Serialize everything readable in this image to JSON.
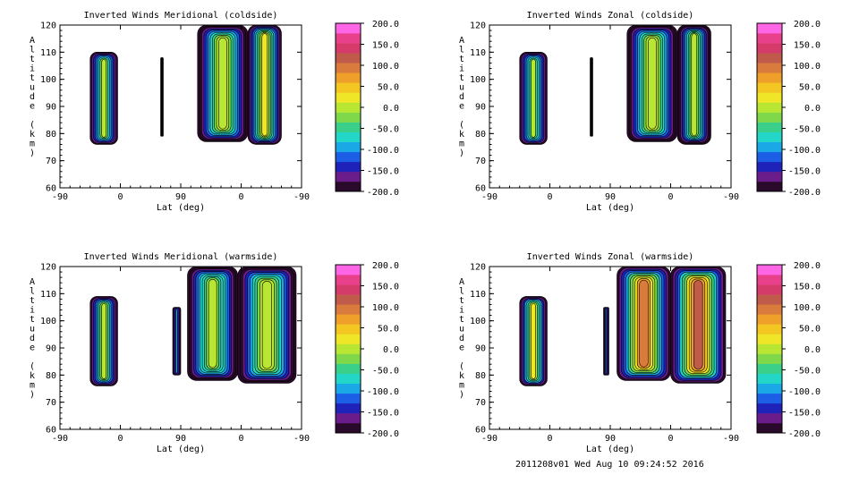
{
  "footer": {
    "stamp": "2011208v01 Wed Aug 10 09:24:52 2016"
  },
  "palette": {
    "colorbar": [
      "#2a0a2a",
      "#6a1d8a",
      "#1e22b8",
      "#1c5fe6",
      "#1aa8e6",
      "#22d6c8",
      "#3ad08a",
      "#7fd84a",
      "#b8e632",
      "#f0e628",
      "#f3c622",
      "#eea02a",
      "#d87b3c",
      "#c05a4a",
      "#d43a6a",
      "#e8408a",
      "#ff66e6"
    ],
    "outline": "#000000"
  },
  "chart_data": [
    {
      "type": "heatmap",
      "title": "Inverted Winds Meridional (coldside)",
      "xlabel": "Lat (deg)",
      "ylabel": "Altitude (km)",
      "x_ticks": [
        "-90",
        "0",
        "90",
        "0",
        "-90"
      ],
      "y_ticks": [
        "60",
        "70",
        "80",
        "90",
        "100",
        "110",
        "120"
      ],
      "ylim": [
        60,
        120
      ],
      "colorbar": {
        "ticks": [
          "200.0",
          "150.0",
          "100.0",
          "50.0",
          "0.0",
          "-50.0",
          "-100.0",
          "-150.0",
          "-200.0"
        ],
        "range": [
          -200,
          200
        ]
      },
      "regions": [
        {
          "x": [
            -45,
            -4
          ],
          "alt": [
            76,
            110
          ],
          "core": -5
        },
        {
          "x": [
            60,
            64
          ],
          "alt": [
            79,
            108
          ],
          "core": -180
        },
        {
          "x": [
            115,
            190
          ],
          "alt": [
            77,
            120
          ],
          "core": 10
        },
        {
          "x": [
            190,
            240
          ],
          "alt": [
            76,
            120
          ],
          "core": 15
        }
      ]
    },
    {
      "type": "heatmap",
      "title": "Inverted Winds Zonal (coldside)",
      "xlabel": "Lat (deg)",
      "ylabel": "Altitude (km)",
      "x_ticks": [
        "-90",
        "0",
        "90",
        "0",
        "-90"
      ],
      "y_ticks": [
        "60",
        "70",
        "80",
        "90",
        "100",
        "110",
        "120"
      ],
      "ylim": [
        60,
        120
      ],
      "colorbar": {
        "ticks": [
          "200.0",
          "150.0",
          "100.0",
          "50.0",
          "0.0",
          "-50.0",
          "-100.0",
          "-150.0",
          "-200.0"
        ],
        "range": [
          -200,
          200
        ]
      },
      "regions": [
        {
          "x": [
            -45,
            -4
          ],
          "alt": [
            76,
            110
          ],
          "core": -10
        },
        {
          "x": [
            60,
            64
          ],
          "alt": [
            79,
            108
          ],
          "core": -180
        },
        {
          "x": [
            115,
            190
          ],
          "alt": [
            77,
            120
          ],
          "core": 10
        },
        {
          "x": [
            190,
            240
          ],
          "alt": [
            76,
            120
          ],
          "core": 5
        }
      ]
    },
    {
      "type": "heatmap",
      "title": "Inverted Winds Meridional (warmside)",
      "xlabel": "Lat (deg)",
      "ylabel": "Altitude (km)",
      "x_ticks": [
        "-90",
        "0",
        "90",
        "0",
        "-90"
      ],
      "y_ticks": [
        "60",
        "70",
        "80",
        "90",
        "100",
        "110",
        "120"
      ],
      "ylim": [
        60,
        120
      ],
      "colorbar": {
        "ticks": [
          "200.0",
          "150.0",
          "100.0",
          "50.0",
          "0.0",
          "-50.0",
          "-100.0",
          "-150.0",
          "-200.0"
        ],
        "range": [
          -200,
          200
        ]
      },
      "regions": [
        {
          "x": [
            -45,
            -4
          ],
          "alt": [
            76,
            109
          ],
          "core": 5
        },
        {
          "x": [
            78,
            90
          ],
          "alt": [
            80,
            105
          ],
          "core": -80
        },
        {
          "x": [
            100,
            175
          ],
          "alt": [
            78,
            120
          ],
          "core": 0
        },
        {
          "x": [
            175,
            262
          ],
          "alt": [
            77,
            120
          ],
          "core": 10
        }
      ]
    },
    {
      "type": "heatmap",
      "title": "Inverted Winds Zonal (warmside)",
      "xlabel": "Lat (deg)",
      "ylabel": "Altitude (km)",
      "x_ticks": [
        "-90",
        "0",
        "90",
        "0",
        "-90"
      ],
      "y_ticks": [
        "60",
        "70",
        "80",
        "90",
        "100",
        "110",
        "120"
      ],
      "ylim": [
        60,
        120
      ],
      "colorbar": {
        "ticks": [
          "200.0",
          "150.0",
          "100.0",
          "50.0",
          "0.0",
          "-50.0",
          "-100.0",
          "-150.0",
          "-200.0"
        ],
        "range": [
          -200,
          200
        ]
      },
      "regions": [
        {
          "x": [
            -45,
            -4
          ],
          "alt": [
            76,
            109
          ],
          "core": 30
        },
        {
          "x": [
            80,
            88
          ],
          "alt": [
            80,
            105
          ],
          "core": -60
        },
        {
          "x": [
            100,
            180
          ],
          "alt": [
            78,
            120
          ],
          "core": 90
        },
        {
          "x": [
            180,
            262
          ],
          "alt": [
            77,
            120
          ],
          "core": 110
        }
      ]
    }
  ]
}
